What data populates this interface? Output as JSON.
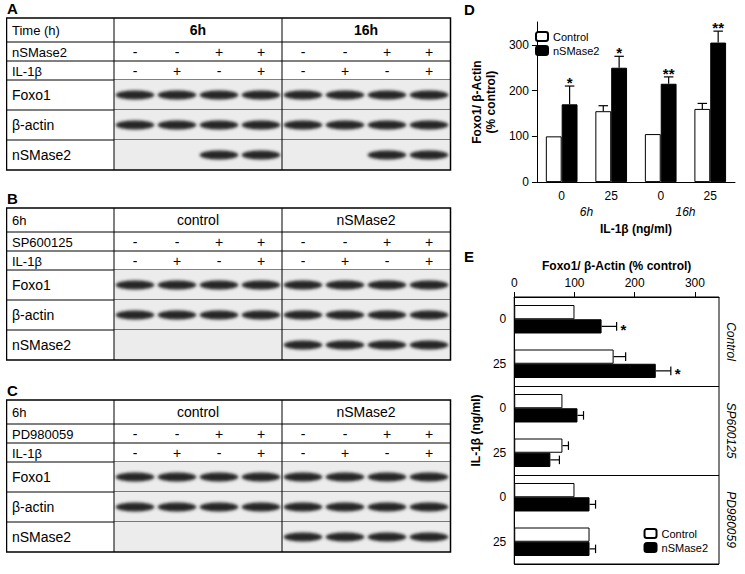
{
  "blots": [
    {
      "label": "A",
      "corner": "Time (h)",
      "groups": [
        "6h",
        "16h"
      ],
      "rows": [
        {
          "name": "nSMase2",
          "signs": [
            "-",
            "-",
            "+",
            "+",
            "-",
            "-",
            "+",
            "+"
          ]
        },
        {
          "name": "IL-1β",
          "signs": [
            "-",
            "+",
            "-",
            "+",
            "-",
            "+",
            "-",
            "+"
          ]
        }
      ],
      "bands": [
        {
          "name": "Foxo1",
          "present": [
            true,
            true,
            true,
            true,
            true,
            true,
            true,
            true
          ]
        },
        {
          "name": "β-actin",
          "present": [
            true,
            true,
            true,
            true,
            true,
            true,
            true,
            true
          ]
        },
        {
          "name": "nSMase2",
          "present": [
            false,
            false,
            true,
            true,
            false,
            false,
            true,
            true
          ]
        }
      ]
    },
    {
      "label": "B",
      "corner": "6h",
      "groups": [
        "control",
        "nSMase2"
      ],
      "rows": [
        {
          "name": "SP600125",
          "signs": [
            "-",
            "-",
            "+",
            "+",
            "-",
            "-",
            "+",
            "+"
          ]
        },
        {
          "name": "IL-1β",
          "signs": [
            "-",
            "+",
            "-",
            "+",
            "-",
            "+",
            "-",
            "+"
          ]
        }
      ],
      "bands": [
        {
          "name": "Foxo1",
          "present": [
            true,
            true,
            true,
            true,
            true,
            true,
            true,
            true
          ]
        },
        {
          "name": "β-actin",
          "present": [
            true,
            true,
            true,
            true,
            true,
            true,
            true,
            true
          ]
        },
        {
          "name": "nSMase2",
          "present": [
            false,
            false,
            false,
            false,
            true,
            true,
            true,
            true
          ]
        }
      ]
    },
    {
      "label": "C",
      "corner": "6h",
      "groups": [
        "control",
        "nSMase2"
      ],
      "rows": [
        {
          "name": "PD980059",
          "signs": [
            "-",
            "-",
            "+",
            "+",
            "-",
            "-",
            "+",
            "+"
          ]
        },
        {
          "name": "IL-1β",
          "signs": [
            "-",
            "+",
            "-",
            "+",
            "-",
            "+",
            "-",
            "+"
          ]
        }
      ],
      "bands": [
        {
          "name": "Foxo1",
          "present": [
            true,
            true,
            true,
            true,
            true,
            true,
            true,
            true
          ]
        },
        {
          "name": "β-actin",
          "present": [
            true,
            true,
            true,
            true,
            true,
            true,
            true,
            true
          ]
        },
        {
          "name": "nSMase2",
          "present": [
            false,
            false,
            false,
            false,
            true,
            true,
            true,
            true
          ]
        }
      ]
    }
  ],
  "chart_data": [
    {
      "label": "D",
      "type": "bar",
      "categories": [
        "0",
        "25",
        "0",
        "25"
      ],
      "category_groups": [
        "6h",
        "16h"
      ],
      "xlabel": "IL-1β (ng/ml)",
      "ylabel": "Foxo1/ β-Actin\n(% control)",
      "ylim": [
        0,
        350
      ],
      "yticks": [
        0,
        100,
        200,
        300
      ],
      "legend": "top-left",
      "series": [
        {
          "name": "Control",
          "color": "#ffffff",
          "values": [
            100,
            155,
            105,
            160
          ],
          "errors": [
            0,
            12,
            0,
            12
          ],
          "significance": [
            null,
            null,
            null,
            null
          ]
        },
        {
          "name": "nSMase2",
          "color": "#000000",
          "values": [
            170,
            250,
            215,
            305
          ],
          "errors": [
            40,
            25,
            15,
            25
          ],
          "significance": [
            "*",
            "*",
            "**",
            "**"
          ]
        }
      ]
    },
    {
      "label": "E",
      "type": "bar",
      "orientation": "horizontal",
      "categories": [
        "0",
        "25",
        "0",
        "25",
        "0",
        "25"
      ],
      "category_groups": [
        "Control",
        "SP600125",
        "PD980059"
      ],
      "xlabel": "Foxo1/ β-Actin (% control)",
      "ylabel": "IL-1β (ng/ml)",
      "xlim": [
        0,
        340
      ],
      "xticks": [
        0,
        100,
        200,
        300
      ],
      "legend": "bottom-right",
      "series": [
        {
          "name": "Control",
          "color": "#ffffff",
          "values": [
            100,
            165,
            80,
            80,
            100,
            125
          ],
          "errors": [
            0,
            20,
            0,
            10,
            0,
            0
          ],
          "significance": [
            null,
            null,
            null,
            null,
            null,
            null
          ]
        },
        {
          "name": "nSMase2",
          "color": "#000000",
          "values": [
            145,
            235,
            105,
            60,
            125,
            125
          ],
          "errors": [
            25,
            25,
            10,
            15,
            10,
            10
          ],
          "significance": [
            "*",
            "*",
            null,
            null,
            null,
            null
          ]
        }
      ]
    }
  ]
}
